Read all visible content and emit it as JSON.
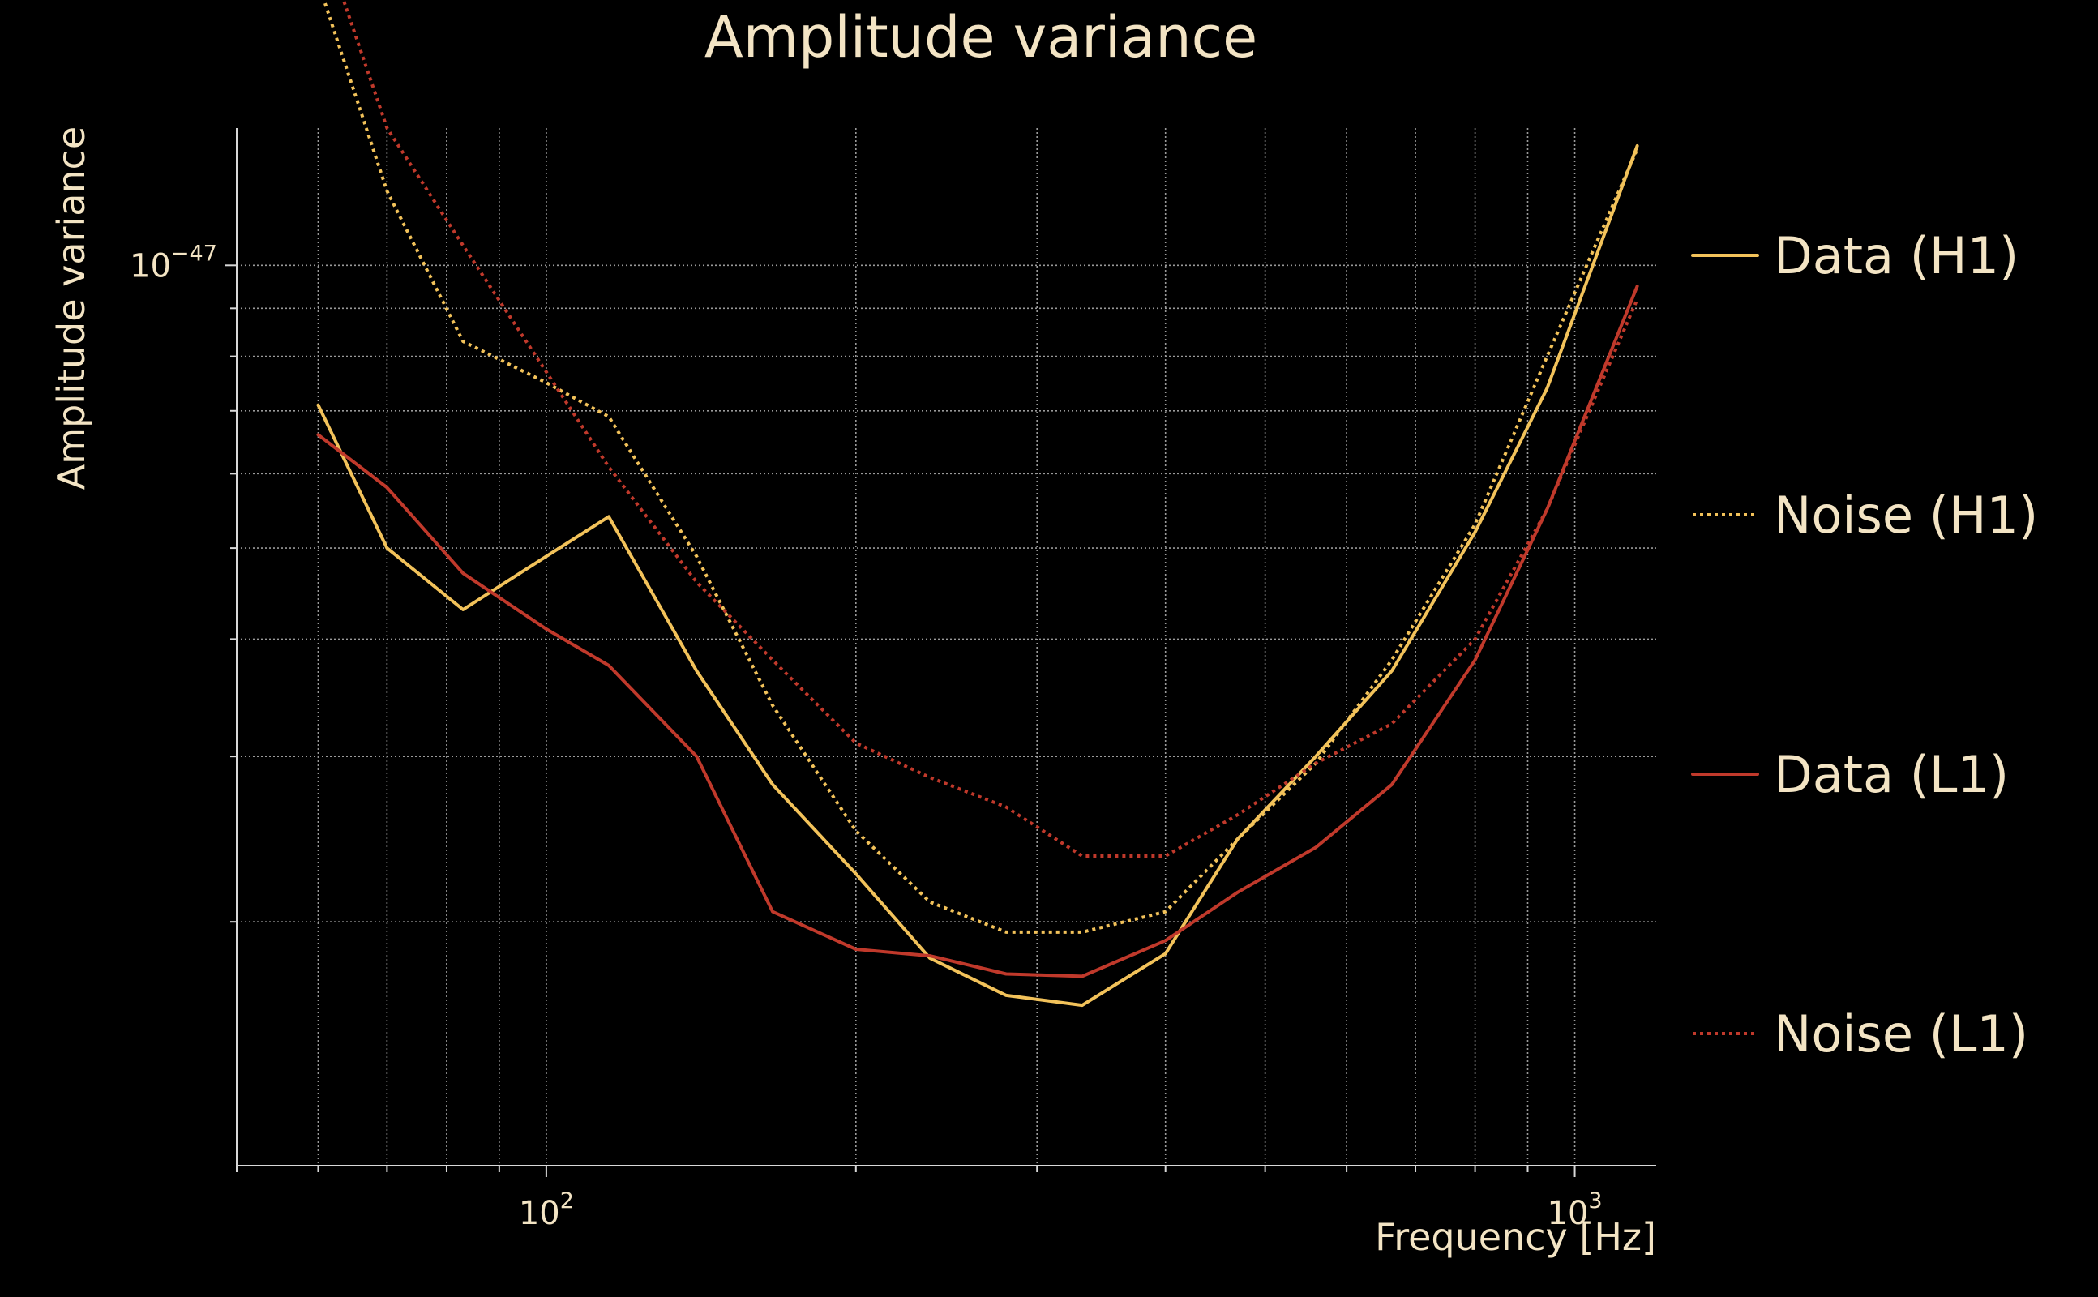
{
  "chart_data": {
    "type": "line",
    "title": "Amplitude variance",
    "xlabel": "Frequency [Hz]",
    "ylabel": "Amplitude variance",
    "xscale": "log",
    "yscale": "log",
    "xlim": [
      50,
      1200
    ],
    "ylim": [
      1.1e-48,
      1.4e-47
    ],
    "xticks": [
      {
        "value": 100,
        "base": "10",
        "exp": "2"
      },
      {
        "value": 1000,
        "base": "10",
        "exp": "3"
      }
    ],
    "yticks": [
      {
        "value": 1e-47,
        "base": "10",
        "exp": "−47"
      }
    ],
    "grid": true,
    "legend_position": "right",
    "x": [
      60,
      70,
      83,
      100,
      115,
      140,
      166,
      200,
      236,
      280,
      332,
      400,
      470,
      560,
      664,
      800,
      940,
      1150
    ],
    "series": [
      {
        "name": "Data (H1)",
        "color": "#f2c25a",
        "style": "solid",
        "values": [
          7.1e-48,
          5e-48,
          4.3e-48,
          4.9e-48,
          5.4e-48,
          3.7e-48,
          2.8e-48,
          2.25e-48,
          1.83e-48,
          1.67e-48,
          1.63e-48,
          1.85e-48,
          2.45e-48,
          3e-48,
          3.7e-48,
          5.2e-48,
          7.4e-48,
          1.34e-47
        ]
      },
      {
        "name": "Noise (H1)",
        "color": "#f2c25a",
        "style": "dotted",
        "values": [
          2e-47,
          1.2e-47,
          8.3e-48,
          7.5e-48,
          6.9e-48,
          4.9e-48,
          3.4e-48,
          2.5e-48,
          2.1e-48,
          1.95e-48,
          1.95e-48,
          2.05e-48,
          2.45e-48,
          2.95e-48,
          3.8e-48,
          5.3e-48,
          8e-48,
          1.33e-47
        ]
      },
      {
        "name": "Data (L1)",
        "color": "#c0392b",
        "style": "solid",
        "values": [
          6.6e-48,
          5.8e-48,
          4.7e-48,
          4.1e-48,
          3.75e-48,
          3e-48,
          2.05e-48,
          1.87e-48,
          1.84e-48,
          1.76e-48,
          1.75e-48,
          1.91e-48,
          2.15e-48,
          2.4e-48,
          2.8e-48,
          3.8e-48,
          5.5e-48,
          9.5e-48
        ]
      },
      {
        "name": "Noise (L1)",
        "color": "#c0392b",
        "style": "dotted",
        "values": [
          2.3e-47,
          1.4e-47,
          1.05e-47,
          7.7e-48,
          6.1e-48,
          4.6e-48,
          3.8e-48,
          3.1e-48,
          2.85e-48,
          2.65e-48,
          2.35e-48,
          2.35e-48,
          2.6e-48,
          2.95e-48,
          3.25e-48,
          4e-48,
          5.5e-48,
          9.2e-48
        ]
      }
    ]
  }
}
